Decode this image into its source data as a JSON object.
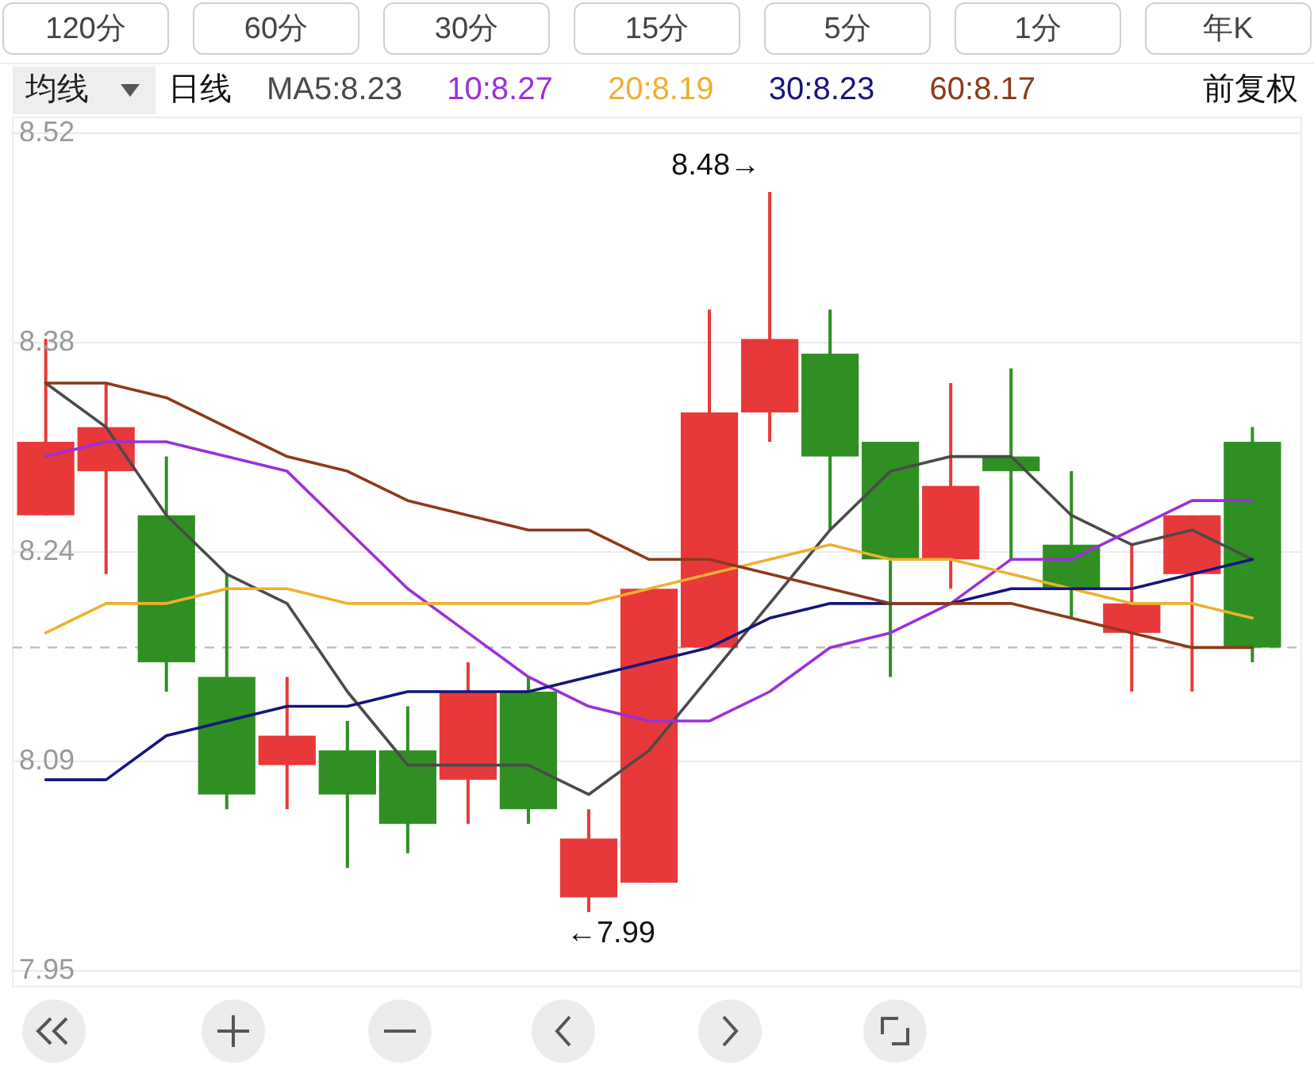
{
  "chart_data": {
    "type": "candlestick",
    "categories": [
      null,
      null,
      null,
      null,
      null,
      null,
      null,
      null,
      null,
      null,
      null,
      null,
      null,
      null,
      null,
      null,
      null,
      null,
      null,
      null,
      null
    ],
    "ohlc": [
      [
        8.26,
        8.38,
        8.26,
        8.31
      ],
      [
        8.29,
        8.35,
        8.22,
        8.32
      ],
      [
        8.26,
        8.3,
        8.14,
        8.16
      ],
      [
        8.15,
        8.22,
        8.06,
        8.07
      ],
      [
        8.09,
        8.15,
        8.06,
        8.11
      ],
      [
        8.1,
        8.12,
        8.02,
        8.07
      ],
      [
        8.1,
        8.13,
        8.03,
        8.05
      ],
      [
        8.08,
        8.16,
        8.05,
        8.14
      ],
      [
        8.14,
        8.15,
        8.05,
        8.06
      ],
      [
        8.0,
        8.06,
        7.99,
        8.04
      ],
      [
        8.01,
        8.21,
        8.01,
        8.21
      ],
      [
        8.17,
        8.4,
        8.17,
        8.33
      ],
      [
        8.33,
        8.48,
        8.31,
        8.38
      ],
      [
        8.37,
        8.4,
        8.25,
        8.3
      ],
      [
        8.31,
        8.31,
        8.15,
        8.23
      ],
      [
        8.23,
        8.35,
        8.21,
        8.28
      ],
      [
        8.3,
        8.36,
        8.23,
        8.29
      ],
      [
        8.24,
        8.29,
        8.19,
        8.21
      ],
      [
        8.18,
        8.24,
        8.14,
        8.2
      ],
      [
        8.22,
        8.26,
        8.14,
        8.26
      ],
      [
        8.31,
        8.32,
        8.16,
        8.17
      ]
    ],
    "colors": [
      "#e8393a",
      "#e8393a",
      "#2f8f22",
      "#2f8f22",
      "#e8393a",
      "#2f8f22",
      "#2f8f22",
      "#e8393a",
      "#2f8f22",
      "#e8393a",
      "#e8393a",
      "#e8393a",
      "#e8393a",
      "#2f8f22",
      "#2f8f22",
      "#e8393a",
      "#2f8f22",
      "#2f8f22",
      "#e8393a",
      "#e8393a",
      "#2f8f22"
    ],
    "series": [
      {
        "type": "line",
        "name": "MA5:8.23",
        "color": "#4a4a4a",
        "values": [
          8.35,
          8.32,
          8.26,
          8.22,
          8.2,
          8.14,
          8.09,
          8.09,
          8.09,
          8.07,
          8.1,
          8.15,
          8.2,
          8.25,
          8.29,
          8.3,
          8.3,
          8.26,
          8.24,
          8.25,
          8.23
        ]
      },
      {
        "type": "line",
        "name": "10:8.27",
        "color": "#9b30d9",
        "values": [
          8.3,
          8.31,
          8.31,
          8.3,
          8.29,
          8.25,
          8.21,
          8.18,
          8.15,
          8.13,
          8.12,
          8.12,
          8.14,
          8.17,
          8.18,
          8.2,
          8.23,
          8.23,
          8.25,
          8.27,
          8.27
        ]
      },
      {
        "type": "line",
        "name": "20:8.19",
        "color": "#eeb030",
        "values": [
          8.18,
          8.2,
          8.2,
          8.21,
          8.21,
          8.2,
          8.2,
          8.2,
          8.2,
          8.2,
          8.21,
          8.22,
          8.23,
          8.24,
          8.23,
          8.23,
          8.22,
          8.21,
          8.2,
          8.2,
          8.19
        ]
      },
      {
        "type": "line",
        "name": "30:8.23",
        "color": "#15157a",
        "values": [
          8.08,
          8.08,
          8.11,
          8.12,
          8.13,
          8.13,
          8.14,
          8.14,
          8.14,
          8.15,
          8.16,
          8.17,
          8.19,
          8.2,
          8.2,
          8.2,
          8.21,
          8.21,
          8.21,
          8.22,
          8.23
        ]
      },
      {
        "type": "line",
        "name": "60:8.17",
        "color": "#8b3a1a",
        "values": [
          8.35,
          8.35,
          8.34,
          8.32,
          8.3,
          8.29,
          8.27,
          8.26,
          8.25,
          8.25,
          8.23,
          8.23,
          8.22,
          8.21,
          8.2,
          8.2,
          8.2,
          8.19,
          8.18,
          8.17,
          8.17
        ]
      }
    ],
    "ylim": [
      7.95,
      8.52
    ],
    "yticks": [
      8.52,
      {
        "value": 8.3775,
        "label": "8.38"
      },
      {
        "value": 8.235,
        "label": "8.24"
      },
      {
        "value": 8.0925,
        "label": "8.09"
      },
      7.95
    ],
    "grid": "y",
    "legend": "top left",
    "line_style": "solid",
    "ref_lines": [
      {
        "axis": "y",
        "value": 8.17,
        "color": "#bbbbbb",
        "line_style": "dashed"
      }
    ],
    "annotations": [
      "120分",
      "60分",
      "30分",
      "15分",
      "5分",
      "1分",
      "年K",
      "均线",
      "日线",
      "前复权",
      "8.48→",
      "←7.99"
    ]
  }
}
